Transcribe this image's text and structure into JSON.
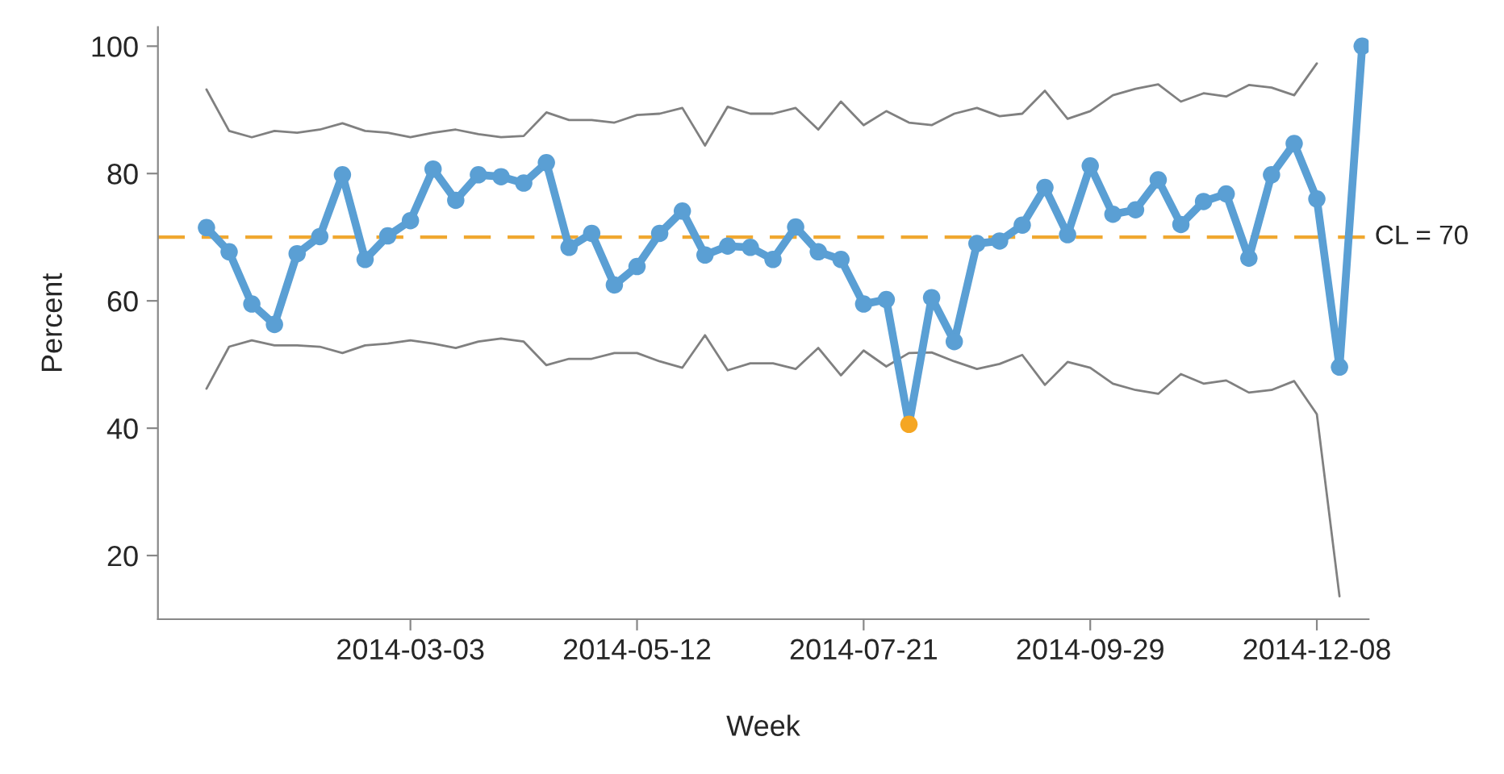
{
  "chart_data": {
    "type": "line",
    "xlabel": "Week",
    "ylabel": "Percent",
    "x": [
      "2013-12-30",
      "2014-01-06",
      "2014-01-13",
      "2014-01-20",
      "2014-01-27",
      "2014-02-03",
      "2014-02-10",
      "2014-02-17",
      "2014-02-24",
      "2014-03-03",
      "2014-03-10",
      "2014-03-17",
      "2014-03-24",
      "2014-03-31",
      "2014-04-07",
      "2014-04-14",
      "2014-04-21",
      "2014-04-28",
      "2014-05-05",
      "2014-05-12",
      "2014-05-19",
      "2014-05-26",
      "2014-06-02",
      "2014-06-09",
      "2014-06-16",
      "2014-06-23",
      "2014-06-30",
      "2014-07-07",
      "2014-07-14",
      "2014-07-21",
      "2014-07-28",
      "2014-08-04",
      "2014-08-11",
      "2014-08-18",
      "2014-08-25",
      "2014-09-01",
      "2014-09-08",
      "2014-09-15",
      "2014-09-22",
      "2014-09-29",
      "2014-10-06",
      "2014-10-13",
      "2014-10-20",
      "2014-10-27",
      "2014-11-03",
      "2014-11-10",
      "2014-11-17",
      "2014-11-24",
      "2014-12-01",
      "2014-12-08",
      "2014-12-15",
      "2014-12-22"
    ],
    "series": [
      {
        "color": "#808080",
        "marker": "none",
        "values": [
          93.2,
          86.7,
          85.7,
          86.7,
          86.4,
          86.9,
          87.9,
          86.7,
          86.4,
          85.7,
          86.4,
          86.9,
          86.2,
          85.7,
          85.9,
          89.6,
          88.4,
          88.4,
          88,
          89.2,
          89.4,
          90.3,
          84.4,
          90.5,
          89.4,
          89.4,
          90.3,
          86.9,
          91.3,
          87.6,
          89.8,
          88,
          87.6,
          89.4,
          90.3,
          89,
          89.4,
          93,
          88.6,
          89.8,
          92.3,
          93.3,
          94,
          91.3,
          92.6,
          92.1,
          93.9,
          93.5,
          92.3,
          97.3,
          null,
          null
        ]
      },
      {
        "color": "#808080",
        "marker": "none",
        "values": [
          46.2,
          52.8,
          53.8,
          53,
          53,
          52.8,
          51.8,
          53,
          53.3,
          53.8,
          53.3,
          52.6,
          53.6,
          54.1,
          53.6,
          49.9,
          50.9,
          50.9,
          51.8,
          51.8,
          50.5,
          49.5,
          54.6,
          49.1,
          50.2,
          50.2,
          49.3,
          52.6,
          48.3,
          52.2,
          49.7,
          51.8,
          51.9,
          50.5,
          49.3,
          50.1,
          51.5,
          46.8,
          50.4,
          49.5,
          47,
          46,
          45.4,
          48.5,
          47,
          47.5,
          45.6,
          46,
          47.4,
          42.2,
          13.6,
          null
        ]
      },
      {
        "color": "#5a9fd4",
        "marker": "circle",
        "values": [
          71.5,
          67.7,
          59.5,
          56.3,
          67.4,
          70.1,
          79.8,
          66.5,
          70.2,
          72.6,
          80.7,
          75.8,
          79.8,
          79.5,
          78.5,
          81.7,
          68.4,
          70.6,
          62.5,
          65.4,
          70.6,
          74.1,
          67.2,
          68.6,
          68.4,
          66.5,
          71.6,
          67.7,
          66.5,
          59.5,
          60.2,
          40.6,
          60.5,
          53.6,
          69,
          69.4,
          71.9,
          77.8,
          70.4,
          81.2,
          73.6,
          74.3,
          79,
          72,
          75.6,
          76.8,
          66.7,
          79.8,
          84.7,
          76,
          49.6,
          100
        ],
        "colors": [
          "#5a9fd4",
          "#5a9fd4",
          "#5a9fd4",
          "#5a9fd4",
          "#5a9fd4",
          "#5a9fd4",
          "#5a9fd4",
          "#5a9fd4",
          "#5a9fd4",
          "#5a9fd4",
          "#5a9fd4",
          "#5a9fd4",
          "#5a9fd4",
          "#5a9fd4",
          "#5a9fd4",
          "#5a9fd4",
          "#5a9fd4",
          "#5a9fd4",
          "#5a9fd4",
          "#5a9fd4",
          "#5a9fd4",
          "#5a9fd4",
          "#5a9fd4",
          "#5a9fd4",
          "#5a9fd4",
          "#5a9fd4",
          "#5a9fd4",
          "#5a9fd4",
          "#5a9fd4",
          "#5a9fd4",
          "#5a9fd4",
          "#f5a623",
          "#5a9fd4",
          "#5a9fd4",
          "#5a9fd4",
          "#5a9fd4",
          "#5a9fd4",
          "#5a9fd4",
          "#5a9fd4",
          "#5a9fd4",
          "#5a9fd4",
          "#5a9fd4",
          "#5a9fd4",
          "#5a9fd4",
          "#5a9fd4",
          "#5a9fd4",
          "#5a9fd4",
          "#5a9fd4",
          "#5a9fd4",
          "#5a9fd4",
          "#5a9fd4",
          "#5a9fd4"
        ]
      }
    ],
    "ref_lines": [
      {
        "axis": "y",
        "value": 70,
        "label": "CL = 70",
        "color": "#f0a830",
        "line_style": "dashed"
      }
    ],
    "xlim": [
      "2013-12-15",
      "2014-12-24"
    ],
    "xticks": [
      "2014-03-03",
      "2014-05-12",
      "2014-07-21",
      "2014-09-29",
      "2014-12-08"
    ],
    "ylim": [
      10,
      103
    ],
    "yticks": [
      20,
      40,
      60,
      80,
      100
    ],
    "grid": false,
    "legend": false
  }
}
